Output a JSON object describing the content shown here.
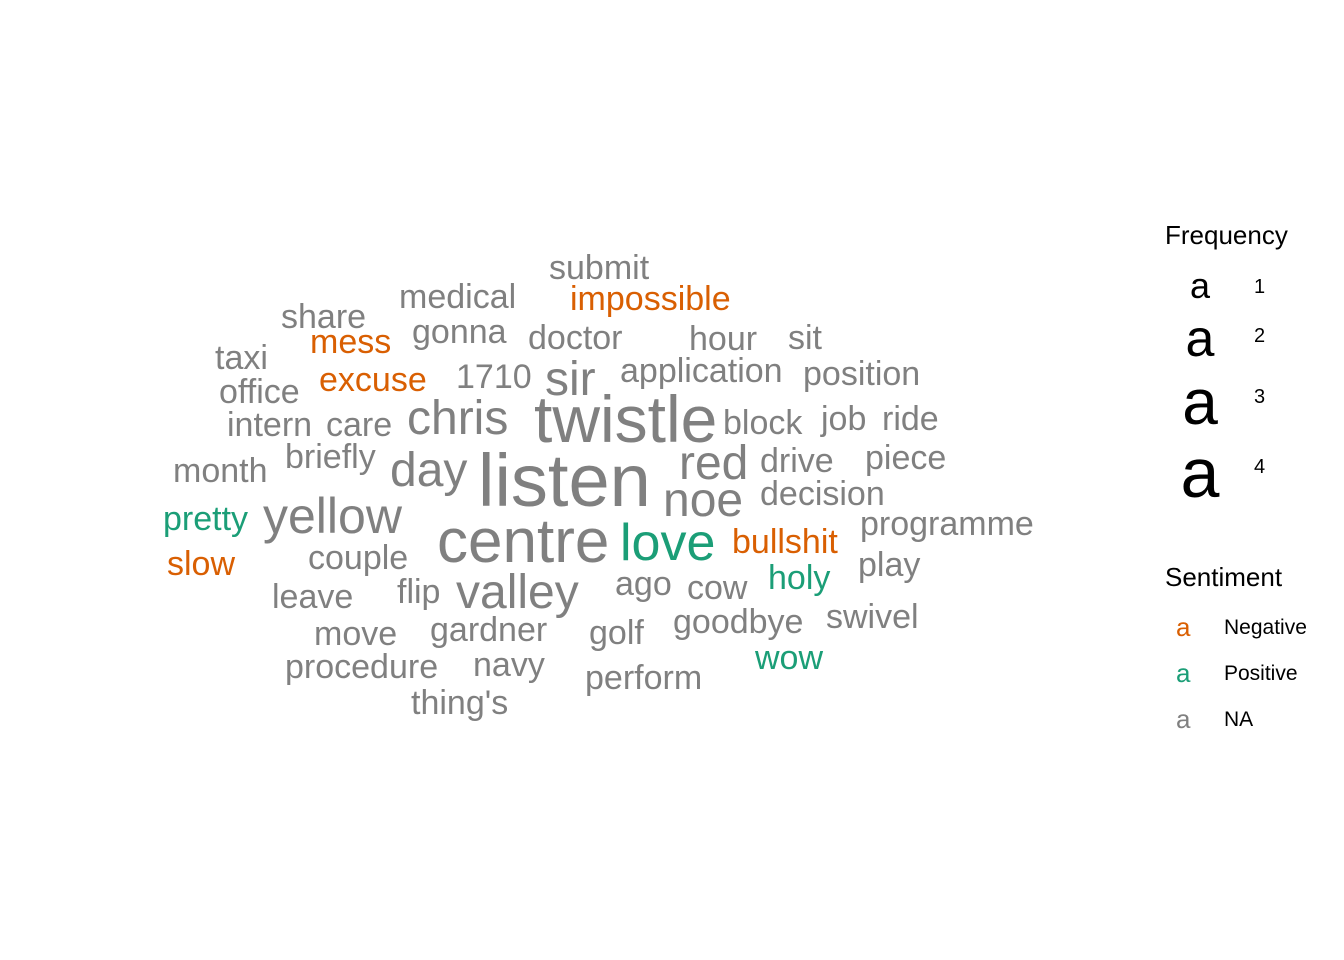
{
  "chart_data": {
    "type": "wordcloud",
    "colors": {
      "Negative": "#d95f02",
      "Positive": "#1b9e77",
      "NA": "#808080"
    },
    "words": [
      {
        "text": "listen",
        "freq": 4,
        "sentiment": "NA"
      },
      {
        "text": "centre",
        "freq": 4,
        "sentiment": "NA"
      },
      {
        "text": "twistle",
        "freq": 4,
        "sentiment": "NA"
      },
      {
        "text": "valley",
        "freq": 3,
        "sentiment": "NA"
      },
      {
        "text": "chris",
        "freq": 3,
        "sentiment": "NA"
      },
      {
        "text": "day",
        "freq": 3,
        "sentiment": "NA"
      },
      {
        "text": "yellow",
        "freq": 3,
        "sentiment": "NA"
      },
      {
        "text": "red",
        "freq": 3,
        "sentiment": "NA"
      },
      {
        "text": "noe",
        "freq": 3,
        "sentiment": "NA"
      },
      {
        "text": "love",
        "freq": 3,
        "sentiment": "Positive"
      },
      {
        "text": "sir",
        "freq": 3,
        "sentiment": "NA"
      },
      {
        "text": "submit",
        "freq": 2,
        "sentiment": "NA"
      },
      {
        "text": "medical",
        "freq": 2,
        "sentiment": "NA"
      },
      {
        "text": "impossible",
        "freq": 2,
        "sentiment": "Negative"
      },
      {
        "text": "share",
        "freq": 2,
        "sentiment": "NA"
      },
      {
        "text": "gonna",
        "freq": 2,
        "sentiment": "NA"
      },
      {
        "text": "doctor",
        "freq": 2,
        "sentiment": "NA"
      },
      {
        "text": "hour",
        "freq": 2,
        "sentiment": "NA"
      },
      {
        "text": "sit",
        "freq": 2,
        "sentiment": "NA"
      },
      {
        "text": "mess",
        "freq": 2,
        "sentiment": "Negative"
      },
      {
        "text": "taxi",
        "freq": 2,
        "sentiment": "NA"
      },
      {
        "text": "1710",
        "freq": 2,
        "sentiment": "NA"
      },
      {
        "text": "application",
        "freq": 2,
        "sentiment": "NA"
      },
      {
        "text": "position",
        "freq": 2,
        "sentiment": "NA"
      },
      {
        "text": "excuse",
        "freq": 2,
        "sentiment": "Negative"
      },
      {
        "text": "office",
        "freq": 2,
        "sentiment": "NA"
      },
      {
        "text": "intern",
        "freq": 2,
        "sentiment": "NA"
      },
      {
        "text": "care",
        "freq": 2,
        "sentiment": "NA"
      },
      {
        "text": "block",
        "freq": 2,
        "sentiment": "NA"
      },
      {
        "text": "job",
        "freq": 2,
        "sentiment": "NA"
      },
      {
        "text": "ride",
        "freq": 2,
        "sentiment": "NA"
      },
      {
        "text": "briefly",
        "freq": 2,
        "sentiment": "NA"
      },
      {
        "text": "month",
        "freq": 2,
        "sentiment": "NA"
      },
      {
        "text": "drive",
        "freq": 2,
        "sentiment": "NA"
      },
      {
        "text": "piece",
        "freq": 2,
        "sentiment": "NA"
      },
      {
        "text": "decision",
        "freq": 2,
        "sentiment": "NA"
      },
      {
        "text": "pretty",
        "freq": 2,
        "sentiment": "Positive"
      },
      {
        "text": "programme",
        "freq": 2,
        "sentiment": "NA"
      },
      {
        "text": "bullshit",
        "freq": 2,
        "sentiment": "Negative"
      },
      {
        "text": "slow",
        "freq": 2,
        "sentiment": "Negative"
      },
      {
        "text": "couple",
        "freq": 2,
        "sentiment": "NA"
      },
      {
        "text": "play",
        "freq": 2,
        "sentiment": "NA"
      },
      {
        "text": "holy",
        "freq": 2,
        "sentiment": "Positive"
      },
      {
        "text": "ago",
        "freq": 2,
        "sentiment": "NA"
      },
      {
        "text": "cow",
        "freq": 2,
        "sentiment": "NA"
      },
      {
        "text": "leave",
        "freq": 2,
        "sentiment": "NA"
      },
      {
        "text": "flip",
        "freq": 2,
        "sentiment": "NA"
      },
      {
        "text": "swivel",
        "freq": 2,
        "sentiment": "NA"
      },
      {
        "text": "move",
        "freq": 2,
        "sentiment": "NA"
      },
      {
        "text": "gardner",
        "freq": 2,
        "sentiment": "NA"
      },
      {
        "text": "golf",
        "freq": 2,
        "sentiment": "NA"
      },
      {
        "text": "goodbye",
        "freq": 2,
        "sentiment": "NA"
      },
      {
        "text": "wow",
        "freq": 2,
        "sentiment": "Positive"
      },
      {
        "text": "procedure",
        "freq": 2,
        "sentiment": "NA"
      },
      {
        "text": "navy",
        "freq": 2,
        "sentiment": "NA"
      },
      {
        "text": "perform",
        "freq": 2,
        "sentiment": "NA"
      },
      {
        "text": "thing's",
        "freq": 2,
        "sentiment": "NA"
      }
    ],
    "legend": {
      "frequency": {
        "title": "Frequency",
        "glyph": "a",
        "levels": [
          1,
          2,
          3,
          4
        ]
      },
      "sentiment": {
        "title": "Sentiment",
        "glyph": "a",
        "entries": [
          {
            "label": "Negative",
            "color": "#d95f02"
          },
          {
            "label": "Positive",
            "color": "#1b9e77"
          },
          {
            "label": "NA",
            "color": "#808080"
          }
        ]
      },
      "placement": "right"
    }
  }
}
